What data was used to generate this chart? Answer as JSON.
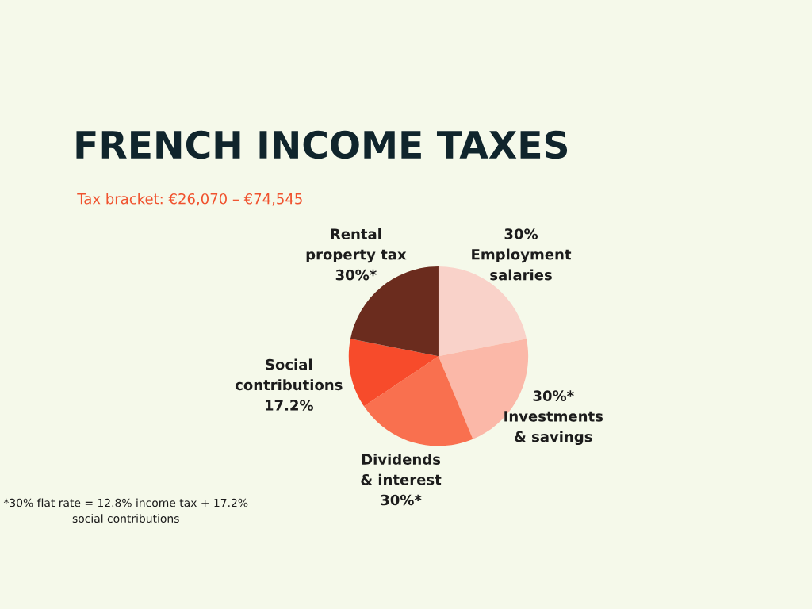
{
  "chart_data": {
    "type": "pie",
    "title": "FRENCH INCOME TAXES",
    "subtitle": "Tax bracket: €26,070 – €74,545",
    "categories": [
      "Employment salaries",
      "Investments & savings",
      "Dividends & interest",
      "Social contributions",
      "Rental property tax"
    ],
    "values": [
      30,
      30,
      30,
      17.2,
      30
    ],
    "value_labels": [
      "30%",
      "30%*",
      "30%*",
      "17.2%",
      "30%*"
    ],
    "colors": [
      "#f9d2c9",
      "#fbb8a8",
      "#f9704f",
      "#f74b2b",
      "#6b2c1e"
    ],
    "annotations": [
      "*30% flat rate = 12.8% income tax + 17.2% social contributions"
    ],
    "legend": false
  }
}
